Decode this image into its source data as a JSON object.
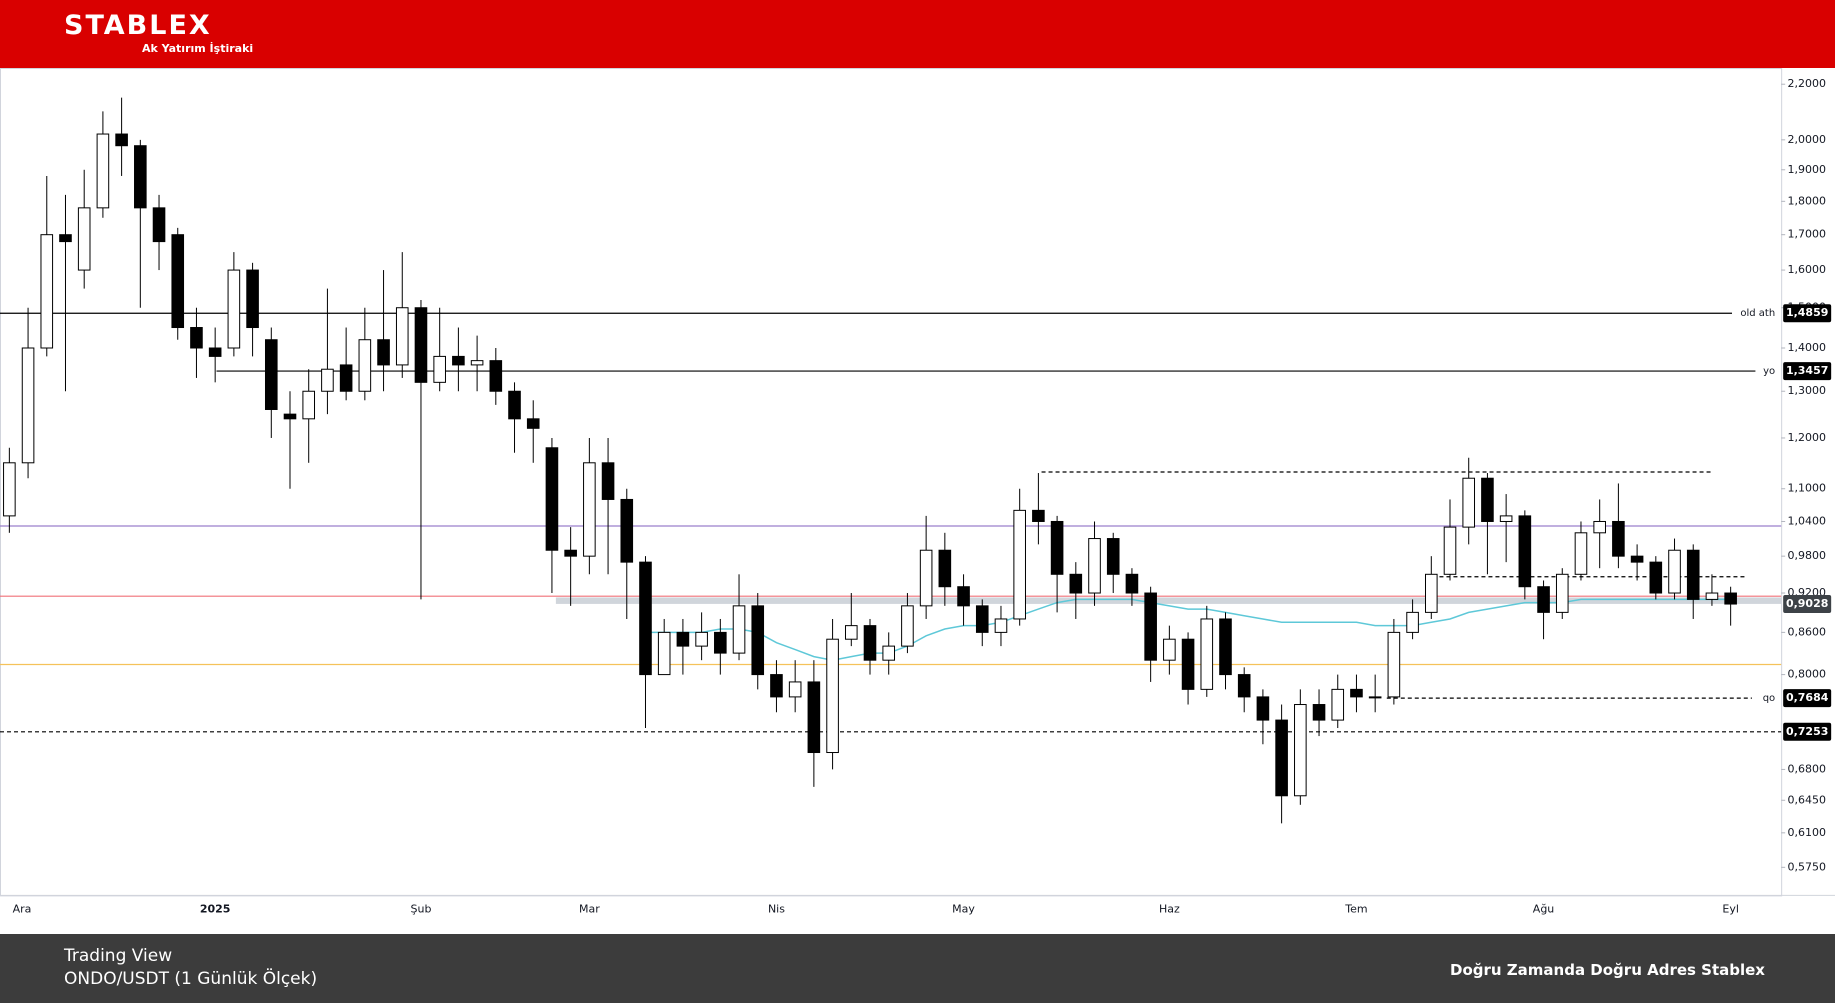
{
  "header": {
    "logo": "STABLEX",
    "tagline": "Ak Yatırım İştiraki"
  },
  "footer": {
    "source": "Trading View",
    "subtitle": "ONDO/USDT (1 Günlük Ölçek)",
    "slogan": "Doğru Zamanda Doğru Adres Stablex"
  },
  "chart_data": {
    "type": "candlestick",
    "log_scale": true,
    "categories": [
      null,
      "Ara",
      null,
      null,
      null,
      null,
      null,
      null,
      null,
      null,
      null,
      "2025",
      null,
      null,
      null,
      null,
      null,
      null,
      null,
      null,
      null,
      null,
      "Şub",
      null,
      null,
      null,
      null,
      null,
      null,
      null,
      null,
      "Mar",
      null,
      null,
      null,
      null,
      null,
      null,
      null,
      null,
      null,
      "Nis",
      null,
      null,
      null,
      null,
      null,
      null,
      null,
      null,
      null,
      "May",
      null,
      null,
      null,
      null,
      null,
      null,
      null,
      null,
      null,
      null,
      "Haz",
      null,
      null,
      null,
      null,
      null,
      null,
      null,
      null,
      null,
      "Tem",
      null,
      null,
      null,
      null,
      null,
      null,
      null,
      null,
      null,
      "Ağu",
      null,
      null,
      null,
      null,
      null,
      null,
      null,
      null,
      null,
      "Eyl"
    ],
    "open": [
      1.05,
      1.15,
      1.4,
      1.7,
      1.6,
      1.78,
      2.02,
      1.98,
      1.78,
      1.7,
      1.45,
      1.4,
      1.4,
      1.6,
      1.42,
      1.25,
      1.24,
      1.3,
      1.36,
      1.3,
      1.42,
      1.36,
      1.5,
      1.32,
      1.38,
      1.36,
      1.37,
      1.3,
      1.24,
      1.18,
      0.99,
      0.98,
      1.15,
      1.08,
      0.97,
      0.8,
      0.86,
      0.84,
      0.86,
      0.83,
      0.9,
      0.8,
      0.77,
      0.79,
      0.7,
      0.85,
      0.87,
      0.82,
      0.84,
      0.9,
      0.99,
      0.93,
      0.9,
      0.86,
      0.88,
      1.06,
      1.04,
      0.95,
      0.92,
      1.01,
      0.95,
      0.92,
      0.82,
      0.85,
      0.78,
      0.88,
      0.8,
      0.77,
      0.74,
      0.65,
      0.76,
      0.74,
      0.78,
      0.77,
      0.77,
      0.86,
      0.89,
      0.95,
      1.03,
      1.12,
      1.04,
      1.05,
      0.93,
      0.89,
      0.95,
      1.02,
      1.04,
      0.98,
      0.97,
      0.92,
      0.99,
      0.91,
      0.92
    ],
    "high": [
      1.18,
      1.5,
      1.88,
      1.82,
      1.9,
      2.1,
      2.15,
      2.0,
      1.82,
      1.72,
      1.5,
      1.45,
      1.65,
      1.62,
      1.45,
      1.3,
      1.35,
      1.55,
      1.45,
      1.5,
      1.6,
      1.65,
      1.52,
      1.5,
      1.45,
      1.43,
      1.4,
      1.32,
      1.28,
      1.2,
      1.03,
      1.2,
      1.2,
      1.1,
      0.98,
      0.88,
      0.88,
      0.89,
      0.88,
      0.95,
      0.92,
      0.82,
      0.82,
      0.82,
      0.88,
      0.92,
      0.88,
      0.86,
      0.92,
      1.05,
      1.02,
      0.95,
      0.91,
      0.9,
      1.1,
      1.13,
      1.05,
      0.97,
      1.04,
      1.02,
      0.96,
      0.93,
      0.87,
      0.86,
      0.9,
      0.89,
      0.81,
      0.78,
      0.76,
      0.78,
      0.78,
      0.8,
      0.8,
      0.8,
      0.88,
      0.91,
      0.98,
      1.08,
      1.16,
      1.13,
      1.09,
      1.06,
      0.94,
      0.96,
      1.04,
      1.08,
      1.11,
      1.0,
      0.98,
      1.01,
      1.0,
      0.95,
      0.93
    ],
    "low": [
      1.02,
      1.12,
      1.38,
      1.3,
      1.55,
      1.75,
      1.88,
      1.5,
      1.6,
      1.42,
      1.33,
      1.32,
      1.38,
      1.38,
      1.2,
      1.1,
      1.15,
      1.25,
      1.28,
      1.28,
      1.3,
      1.33,
      0.91,
      1.3,
      1.3,
      1.3,
      1.27,
      1.17,
      1.15,
      0.92,
      0.9,
      0.95,
      0.95,
      0.88,
      0.73,
      0.8,
      0.8,
      0.82,
      0.8,
      0.82,
      0.78,
      0.75,
      0.75,
      0.66,
      0.68,
      0.84,
      0.8,
      0.8,
      0.83,
      0.88,
      0.9,
      0.87,
      0.84,
      0.84,
      0.87,
      1.0,
      0.89,
      0.88,
      0.9,
      0.92,
      0.9,
      0.79,
      0.8,
      0.76,
      0.77,
      0.78,
      0.75,
      0.71,
      0.62,
      0.64,
      0.72,
      0.73,
      0.75,
      0.75,
      0.76,
      0.85,
      0.88,
      0.94,
      1.0,
      0.95,
      0.97,
      0.91,
      0.85,
      0.88,
      0.94,
      0.96,
      0.96,
      0.94,
      0.91,
      0.91,
      0.88,
      0.9,
      0.87
    ],
    "close": [
      1.15,
      1.4,
      1.7,
      1.68,
      1.78,
      2.02,
      1.98,
      1.78,
      1.68,
      1.45,
      1.4,
      1.38,
      1.6,
      1.45,
      1.26,
      1.24,
      1.3,
      1.35,
      1.3,
      1.42,
      1.36,
      1.5,
      1.32,
      1.38,
      1.36,
      1.37,
      1.3,
      1.24,
      1.22,
      0.99,
      0.98,
      1.15,
      1.08,
      0.97,
      0.8,
      0.86,
      0.84,
      0.86,
      0.83,
      0.9,
      0.8,
      0.77,
      0.79,
      0.7,
      0.85,
      0.87,
      0.82,
      0.84,
      0.9,
      0.99,
      0.93,
      0.9,
      0.86,
      0.88,
      1.06,
      1.04,
      0.95,
      0.92,
      1.01,
      0.95,
      0.92,
      0.82,
      0.85,
      0.78,
      0.88,
      0.8,
      0.77,
      0.74,
      0.65,
      0.76,
      0.74,
      0.78,
      0.77,
      0.77,
      0.86,
      0.89,
      0.95,
      1.03,
      1.12,
      1.04,
      1.05,
      0.93,
      0.89,
      0.95,
      1.02,
      1.04,
      0.98,
      0.97,
      0.92,
      0.99,
      0.91,
      0.92,
      0.9028
    ],
    "up_color": "#ffffff",
    "down_color": "#000000",
    "ma": {
      "color": "#5ec8d8",
      "values": [
        null,
        null,
        null,
        null,
        null,
        null,
        null,
        null,
        null,
        null,
        null,
        null,
        null,
        null,
        null,
        null,
        null,
        null,
        null,
        null,
        null,
        null,
        null,
        null,
        null,
        null,
        null,
        null,
        null,
        null,
        null,
        null,
        null,
        null,
        0.86,
        0.86,
        0.86,
        0.86,
        0.865,
        0.865,
        0.86,
        0.845,
        0.835,
        0.825,
        0.82,
        0.825,
        0.83,
        0.83,
        0.84,
        0.855,
        0.865,
        0.87,
        0.87,
        0.875,
        0.885,
        0.895,
        0.905,
        0.91,
        0.91,
        0.91,
        0.91,
        0.905,
        0.9,
        0.895,
        0.895,
        0.89,
        0.885,
        0.88,
        0.875,
        0.875,
        0.875,
        0.875,
        0.875,
        0.87,
        0.87,
        0.87,
        0.875,
        0.88,
        0.89,
        0.895,
        0.9,
        0.905,
        0.905,
        0.905,
        0.91,
        0.91,
        0.91,
        0.91,
        0.91,
        0.91,
        0.91,
        0.91,
        0.91
      ]
    },
    "levels": [
      {
        "name": "old ath",
        "value": 1.4859,
        "label": "1,4859",
        "color": "#000000",
        "dashed": false
      },
      {
        "name": "yo",
        "value": 1.3457,
        "label": "1,3457",
        "color": "#000000",
        "dashed": false
      },
      {
        "value": 1.032,
        "color": "#9b7fcc",
        "dashed": false
      },
      {
        "value": 0.915,
        "color": "#f07078",
        "dashed": false
      },
      {
        "value": 0.814,
        "color": "#f5c25a",
        "dashed": false
      },
      {
        "name": "qo",
        "value": 0.7684,
        "label": "0,7684",
        "color": "#000000",
        "dashed": true
      },
      {
        "value": 0.7253,
        "label": "0,7253",
        "color": "#000000",
        "dashed": true
      },
      {
        "value": 1.132,
        "color": "#000000",
        "dashed": true
      },
      {
        "value": 0.946,
        "color": "#000000",
        "dashed": true
      }
    ],
    "zone": {
      "low": 0.903,
      "high": 0.913,
      "color": "#a9b3bd"
    },
    "last_price": {
      "value": 0.9028,
      "label": "0,9028",
      "color": "#3d4247"
    },
    "ylim": [
      0.548,
      2.262
    ],
    "yticks": [
      {
        "value": 2.2,
        "label": "2,2000"
      },
      {
        "value": 2.0,
        "label": "2,0000"
      },
      {
        "value": 1.9,
        "label": "1,9000"
      },
      {
        "value": 1.8,
        "label": "1,8000"
      },
      {
        "value": 1.7,
        "label": "1,7000"
      },
      {
        "value": 1.6,
        "label": "1,6000"
      },
      {
        "value": 1.5,
        "label": "1,5000"
      },
      {
        "value": 1.4,
        "label": "1,4000"
      },
      {
        "value": 1.3,
        "label": "1,3000"
      },
      {
        "value": 1.2,
        "label": "1,2000"
      },
      {
        "value": 1.1,
        "label": "1,1000"
      },
      {
        "value": 1.04,
        "label": "1,0400"
      },
      {
        "value": 0.98,
        "label": "0,9800"
      },
      {
        "value": 0.92,
        "label": "0,9200"
      },
      {
        "value": 0.86,
        "label": "0,8600"
      },
      {
        "value": 0.8,
        "label": "0,8000"
      },
      {
        "value": 0.68,
        "label": "0,6800"
      },
      {
        "value": 0.645,
        "label": "0,6450"
      },
      {
        "value": 0.61,
        "label": "0,6100"
      },
      {
        "value": 0.575,
        "label": "0,5750"
      }
    ],
    "grid": false
  }
}
